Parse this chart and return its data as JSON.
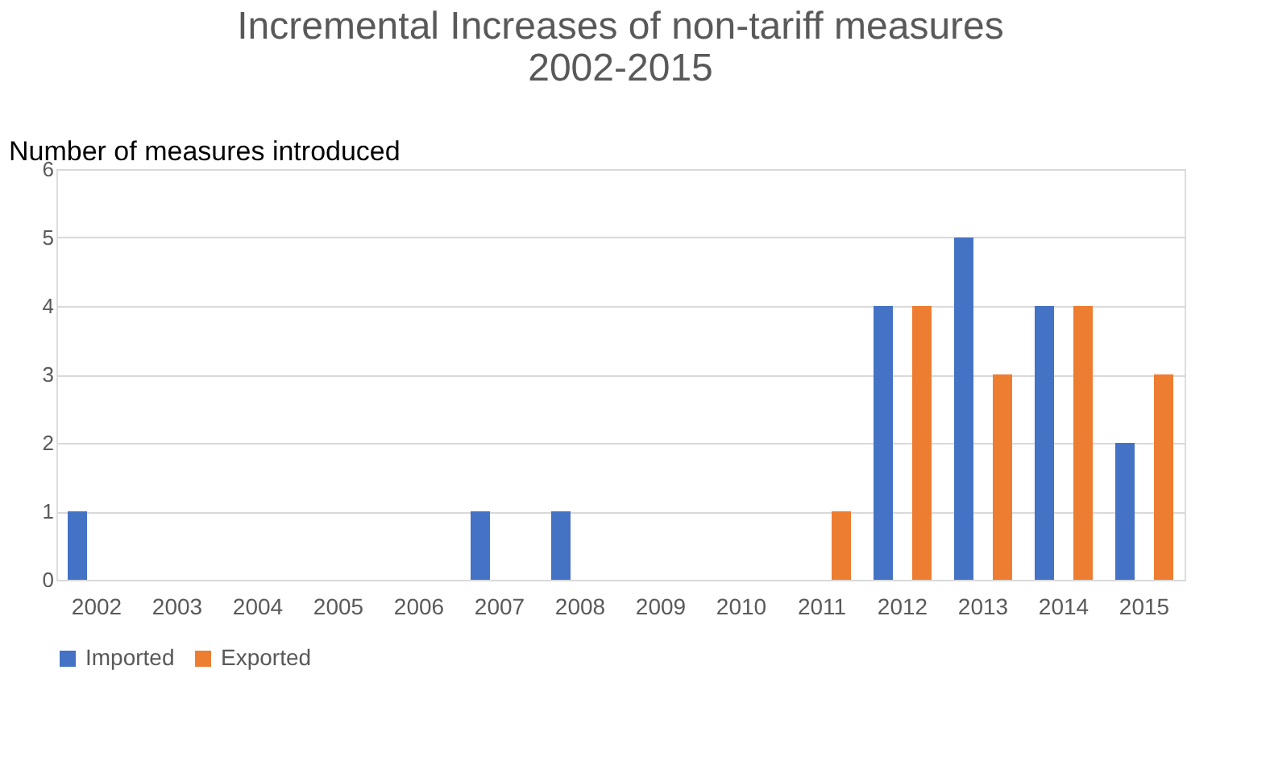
{
  "chart_data": {
    "type": "bar",
    "title": "Incremental Increases of non-tariff measures\n2002-2015",
    "ylabel": "Number of measures introduced",
    "categories": [
      "2002",
      "2003",
      "2004",
      "2005",
      "2006",
      "2007",
      "2008",
      "2009",
      "2010",
      "2011",
      "2012",
      "2013",
      "2014",
      "2015"
    ],
    "series": [
      {
        "name": "Imported",
        "color": "#4472c4",
        "values": [
          1,
          0,
          0,
          0,
          0,
          1,
          1,
          0,
          0,
          0,
          4,
          5,
          4,
          2
        ]
      },
      {
        "name": "Exported",
        "color": "#ed7d31",
        "values": [
          0,
          0,
          0,
          0,
          0,
          0,
          0,
          0,
          0,
          1,
          4,
          3,
          4,
          3
        ]
      }
    ],
    "ylim": [
      0,
      6
    ],
    "yticks": [
      0,
      1,
      2,
      3,
      4,
      5,
      6
    ],
    "grid": "y",
    "legend": "bottom"
  }
}
